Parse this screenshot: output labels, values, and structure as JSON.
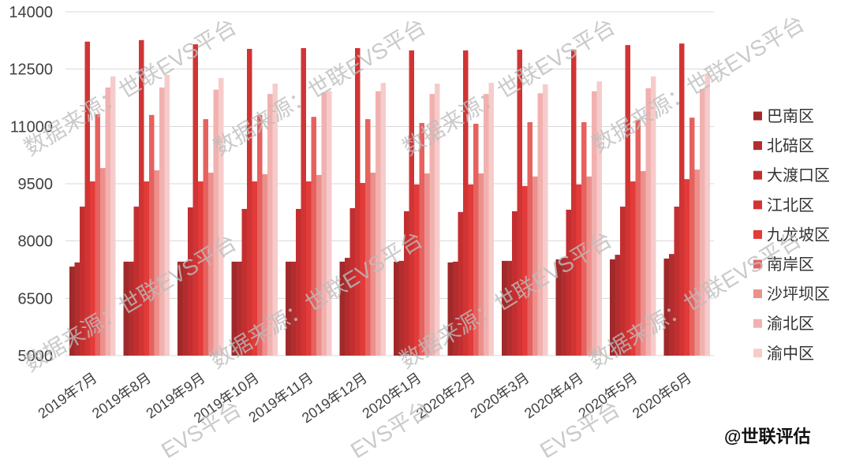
{
  "watermark": "数据来源：世联EVS平台",
  "credit": "@世联评估",
  "colors": {
    "grid": "#D9D9D9",
    "axis_text": "#404040",
    "legend_text": "#333333",
    "watermark": "#BDBDBD",
    "credit": "#111111"
  },
  "chart_data": {
    "type": "bar",
    "ylim": [
      5000,
      14000
    ],
    "yticks": [
      5000,
      6500,
      8000,
      9500,
      11000,
      12500,
      14000
    ],
    "grid": true,
    "legend": "right",
    "categories": [
      "2019年7月",
      "2019年8月",
      "2019年9月",
      "2019年10月",
      "2019年11月",
      "2019年12月",
      "2020年1月",
      "2020年2月",
      "2020年3月",
      "2020年4月",
      "2020年5月",
      "2020年6月"
    ],
    "series": [
      {
        "name": "巴南区",
        "color": "#A0292A",
        "values": [
          7330,
          7460,
          7460,
          7460,
          7460,
          7460,
          7460,
          7440,
          7480,
          7520,
          7520,
          7540
        ]
      },
      {
        "name": "北碚区",
        "color": "#B22D2E",
        "values": [
          7440,
          7460,
          7460,
          7460,
          7460,
          7560,
          7480,
          7460,
          7480,
          7560,
          7640,
          7660
        ]
      },
      {
        "name": "大渡口区",
        "color": "#C32F30",
        "values": [
          8900,
          8900,
          8880,
          8840,
          8840,
          8860,
          8780,
          8760,
          8780,
          8820,
          8900,
          8900
        ]
      },
      {
        "name": "江北区",
        "color": "#D13434",
        "values": [
          13220,
          13260,
          13150,
          13030,
          13050,
          13050,
          12990,
          12990,
          13010,
          13010,
          13130,
          13170
        ]
      },
      {
        "name": "九龙坡区",
        "color": "#E23B39",
        "values": [
          9560,
          9560,
          9560,
          9560,
          9560,
          9520,
          9480,
          9480,
          9440,
          9480,
          9560,
          9620
        ]
      },
      {
        "name": "南岸区",
        "color": "#E6625F",
        "values": [
          11320,
          11300,
          11190,
          11300,
          11250,
          11190,
          11090,
          11070,
          11110,
          11110,
          11170,
          11230
        ]
      },
      {
        "name": "沙坪坝区",
        "color": "#EC908E",
        "values": [
          9910,
          9850,
          9790,
          9750,
          9730,
          9790,
          9770,
          9770,
          9690,
          9690,
          9830,
          9870
        ]
      },
      {
        "name": "渝北区",
        "color": "#F1B1AF",
        "values": [
          12020,
          12020,
          11960,
          11850,
          11890,
          11920,
          11850,
          11850,
          11870,
          11920,
          12000,
          11980
        ]
      },
      {
        "name": "渝中区",
        "color": "#F6CCCB",
        "values": [
          12310,
          12350,
          12270,
          12120,
          11930,
          12140,
          12120,
          12140,
          12100,
          12180,
          12310,
          12390
        ]
      }
    ]
  }
}
